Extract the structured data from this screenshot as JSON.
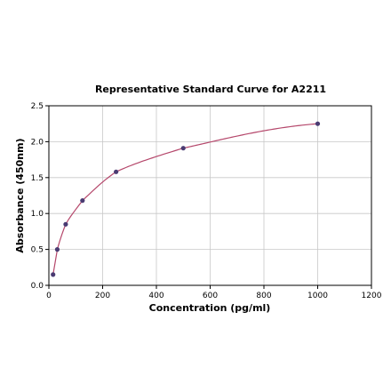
{
  "chart_data": {
    "type": "scatter",
    "title": "Representative Standard Curve for A2211",
    "xlabel": "Concentration (pg/ml)",
    "ylabel": "Absorbance (450nm)",
    "xlim": [
      0,
      1200
    ],
    "ylim": [
      0,
      2.5
    ],
    "xticks": [
      0,
      200,
      400,
      600,
      800,
      1000,
      1200
    ],
    "xtick_labels": [
      "0",
      "200",
      "400",
      "600",
      "800",
      "1000",
      "1200"
    ],
    "yticks": [
      0,
      0.5,
      1.0,
      1.5,
      2.0,
      2.5
    ],
    "ytick_labels": [
      "0.0",
      "0.5",
      "1.0",
      "1.5",
      "2.0",
      "2.5"
    ],
    "grid": true,
    "series": [
      {
        "x": [
          15.6,
          31.25,
          62.5,
          125,
          250,
          500,
          1000
        ],
        "y": [
          0.15,
          0.5,
          0.85,
          1.18,
          1.58,
          1.91,
          2.25
        ]
      }
    ],
    "fit_curve": true,
    "colors": {
      "curve": "#b5476b",
      "points": "#4a3b72",
      "grid": "#c8c8c8"
    }
  }
}
